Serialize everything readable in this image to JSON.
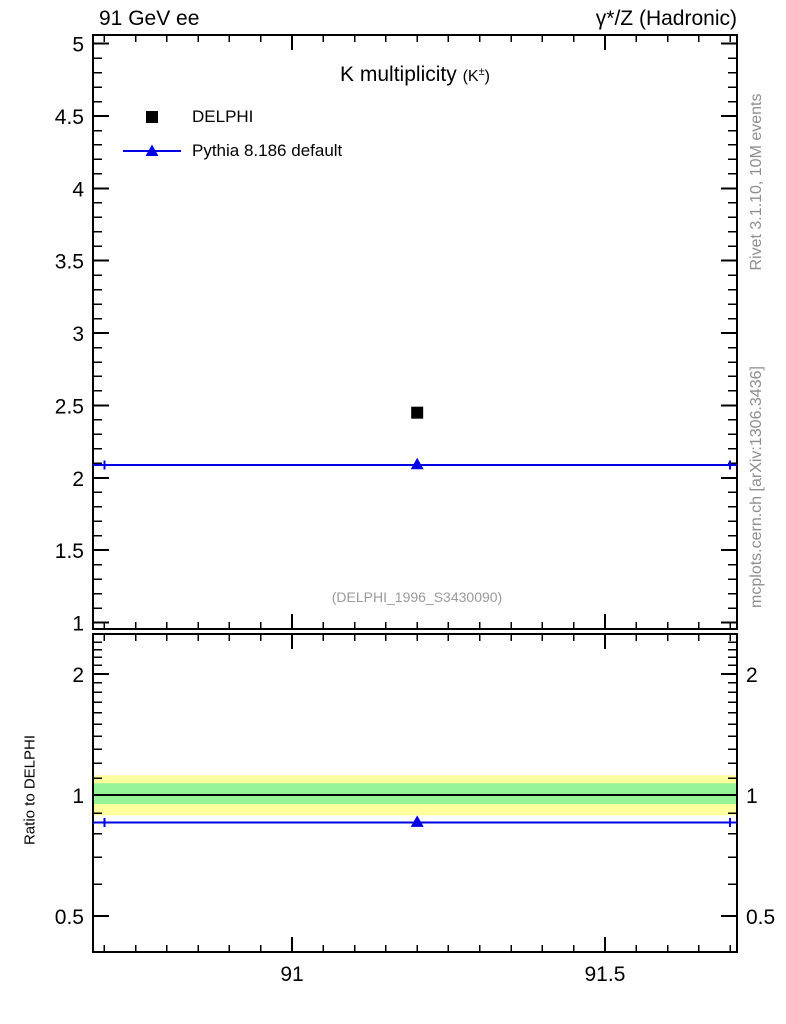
{
  "header": {
    "left": "91 GeV ee",
    "right": "γ*/Z (Hadronic)"
  },
  "plot_title": {
    "text": "K multiplicity ",
    "paren_pre": "(K",
    "paren_sup": "±",
    "paren_post": ")"
  },
  "legend": {
    "items": [
      {
        "label": "DELPHI",
        "marker": "filled-square"
      },
      {
        "label": "Pythia 8.186 default",
        "marker": "line-with-triangle"
      }
    ]
  },
  "watermark": "(DELPHI_1996_S3430090)",
  "sidebar": {
    "top_text": "Rivet 3.1.10,  10M events",
    "bottom_text": "mcplots.cern.ch [arXiv:1306.3436]"
  },
  "ratio_axis_label": "Ratio to DELPHI",
  "colors": {
    "axis": "#000000",
    "mc_blue": "#0000e6",
    "band_yellow": "#ffff9e",
    "band_green": "#97f397",
    "gray_text": "#8e8e8e",
    "watermark_gray": "#9a9a9a"
  },
  "chart_data": [
    {
      "type": "scatter",
      "panel": "main",
      "title": "K multiplicity (K±)",
      "xlim": [
        90.682,
        91.711
      ],
      "ylim": [
        0.955,
        5.06
      ],
      "yscale": "linear",
      "xticks_major": [
        91,
        91.5
      ],
      "xtick_labels": [
        "91",
        "91.5"
      ],
      "xticks_minor_step": 0.05,
      "xticks_minor_range": [
        90.7,
        91.7
      ],
      "yticks_major": [
        1,
        1.5,
        2,
        2.5,
        3,
        3.5,
        4,
        4.5,
        5
      ],
      "yticks_minor_step": 0.1,
      "grid": false,
      "legend_position": "top-left",
      "series": [
        {
          "name": "DELPHI",
          "marker": "square",
          "color": "#000000",
          "points": [
            {
              "x": 91.2,
              "y": 2.45
            }
          ]
        },
        {
          "name": "Pythia 8.186 default",
          "marker": "triangle",
          "color": "#0000e6",
          "line": {
            "y": 2.09,
            "cap_x_from": 90.7,
            "cap_x_to": 91.7
          },
          "points": [
            {
              "x": 91.2,
              "y": 2.09
            }
          ]
        }
      ]
    },
    {
      "type": "ratio",
      "panel": "ratio",
      "ylabel": "Ratio to DELPHI",
      "xlim": [
        90.682,
        91.711
      ],
      "ylim": [
        0.407,
        2.515
      ],
      "yscale": "log",
      "xticks_major": [
        91,
        91.5
      ],
      "xtick_labels": [
        "91",
        "91.5"
      ],
      "xticks_minor_step": 0.05,
      "xticks_minor_range": [
        90.7,
        91.7
      ],
      "yticks_major": [
        0.5,
        1,
        2
      ],
      "ytick_labels": [
        "0.5",
        "1",
        "2"
      ],
      "yticks_minor": [
        0.6,
        0.7,
        0.8,
        0.9,
        1.1,
        1.2,
        1.3,
        1.4,
        1.5,
        1.6,
        1.7,
        1.8,
        1.9,
        2.1,
        2.2,
        2.3,
        2.4
      ],
      "bands": [
        {
          "name": "data-uncertainty-outer",
          "color": "#ffff9e",
          "from": 0.89,
          "to": 1.12
        },
        {
          "name": "data-uncertainty-inner",
          "color": "#97f397",
          "from": 0.95,
          "to": 1.07
        }
      ],
      "reference_line_y": 1,
      "series": [
        {
          "name": "Pythia 8.186 default",
          "marker": "triangle",
          "color": "#0000e6",
          "line": {
            "y": 0.855,
            "cap_x_from": 90.7,
            "cap_x_to": 91.7
          },
          "points": [
            {
              "x": 91.2,
              "y": 0.855
            }
          ]
        }
      ]
    }
  ]
}
